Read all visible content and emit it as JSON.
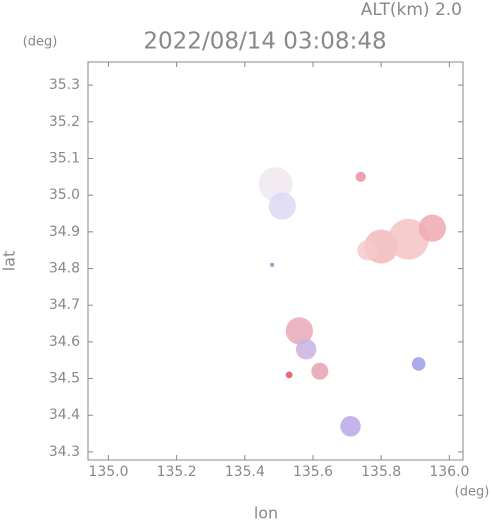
{
  "chart_data": {
    "type": "scatter",
    "title": "2022/08/14 03:08:48",
    "subtitle": "ALT(km) 2.0",
    "y_unit": "(deg)",
    "x_unit": "(deg)",
    "x_label": "lon",
    "y_label": "lat",
    "xlim": [
      134.94,
      136.04
    ],
    "ylim": [
      34.278,
      35.363
    ],
    "xticks": [
      {
        "value": 135.0,
        "label": "135.0"
      },
      {
        "value": 135.2,
        "label": "135.2"
      },
      {
        "value": 135.4,
        "label": "135.4"
      },
      {
        "value": 135.6,
        "label": "135.6"
      },
      {
        "value": 135.8,
        "label": "135.8"
      },
      {
        "value": 136.0,
        "label": "136.0"
      }
    ],
    "yticks": [
      {
        "value": 34.3,
        "label": "34.3"
      },
      {
        "value": 34.4,
        "label": "34.4"
      },
      {
        "value": 34.5,
        "label": "34.5"
      },
      {
        "value": 34.6,
        "label": "34.6"
      },
      {
        "value": 34.7,
        "label": "34.7"
      },
      {
        "value": 34.8,
        "label": "34.8"
      },
      {
        "value": 34.9,
        "label": "34.9"
      },
      {
        "value": 35.0,
        "label": "35.0"
      },
      {
        "value": 35.1,
        "label": "35.1"
      },
      {
        "value": 35.2,
        "label": "35.2"
      },
      {
        "value": 35.3,
        "label": "35.3"
      }
    ],
    "x": [
      135.8,
      135.88,
      135.95,
      135.76,
      135.49,
      135.51,
      135.56,
      135.58,
      135.62,
      135.71,
      135.91,
      135.74,
      135.53,
      135.48
    ],
    "values": [
      34.86,
      34.88,
      34.91,
      34.85,
      35.03,
      34.97,
      34.63,
      34.58,
      34.52,
      34.37,
      34.54,
      35.05,
      34.51,
      34.81
    ],
    "sizes": [
      0.05,
      0.06,
      0.04,
      0.03,
      0.05,
      0.04,
      0.04,
      0.03,
      0.025,
      0.03,
      0.02,
      0.015,
      0.01,
      0.006
    ],
    "colors": [
      "#f2b8b8",
      "#f4c4c4",
      "#f0a8b0",
      "#f6caca",
      "#f0e8ee",
      "#dcd8f4",
      "#e8a8b8",
      "#c8b0e0",
      "#e8a0b0",
      "#b8a8e8",
      "#9c9ce8",
      "#e890a0",
      "#e05060",
      "#8888cc"
    ]
  }
}
